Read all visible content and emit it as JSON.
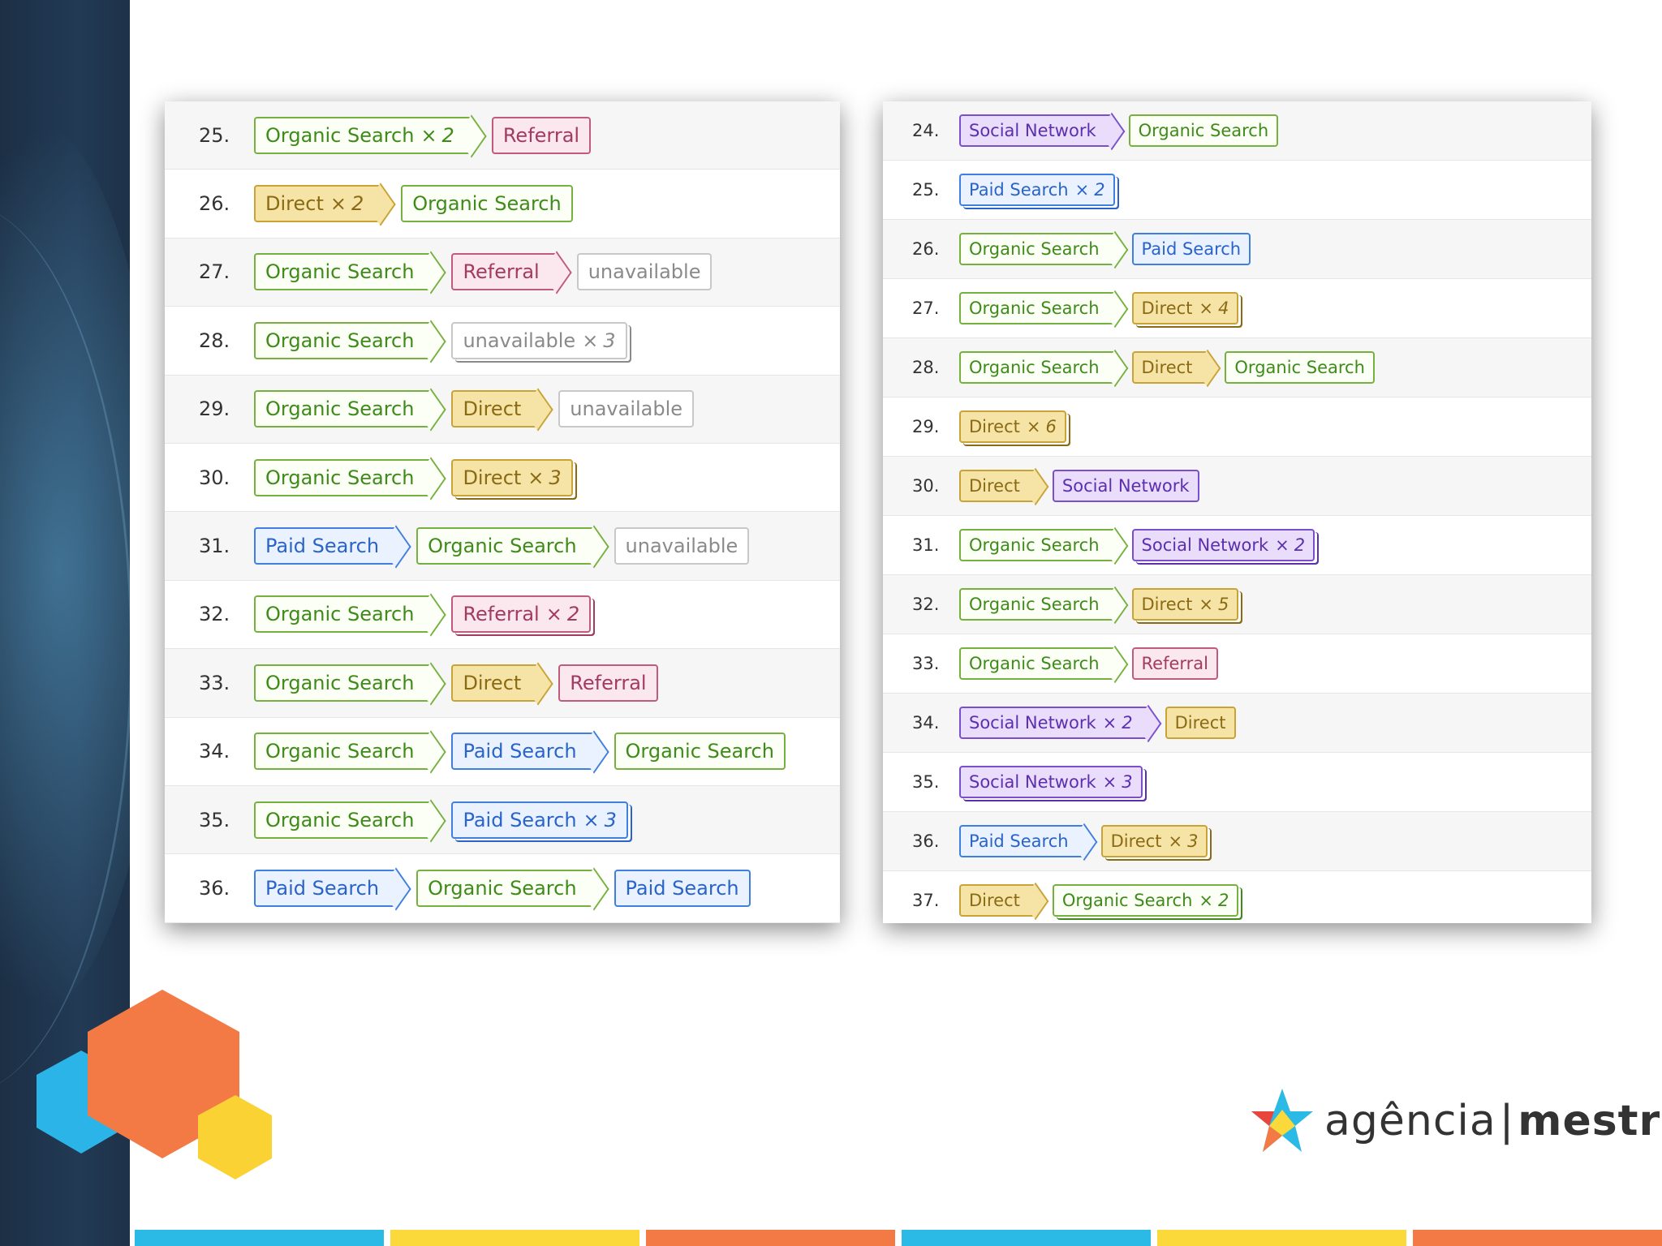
{
  "left_table": {
    "rows": [
      {
        "num": "25.",
        "chips": [
          {
            "label": "Organic Search",
            "type": "organic",
            "count": "2",
            "arrow": true
          },
          {
            "label": "Referral",
            "type": "referral",
            "arrow": false
          }
        ]
      },
      {
        "num": "26.",
        "chips": [
          {
            "label": "Direct",
            "type": "direct",
            "count": "2",
            "arrow": true
          },
          {
            "label": "Organic Search",
            "type": "organic",
            "arrow": false
          }
        ]
      },
      {
        "num": "27.",
        "chips": [
          {
            "label": "Organic Search",
            "type": "organic",
            "arrow": true
          },
          {
            "label": "Referral",
            "type": "referral",
            "arrow": true
          },
          {
            "label": "unavailable",
            "type": "unavailable",
            "arrow": false
          }
        ]
      },
      {
        "num": "28.",
        "chips": [
          {
            "label": "Organic Search",
            "type": "organic",
            "arrow": true
          },
          {
            "label": "unavailable",
            "type": "unavailable",
            "count": "3",
            "arrow": false
          }
        ]
      },
      {
        "num": "29.",
        "chips": [
          {
            "label": "Organic Search",
            "type": "organic",
            "arrow": true
          },
          {
            "label": "Direct",
            "type": "direct",
            "arrow": true
          },
          {
            "label": "unavailable",
            "type": "unavailable",
            "arrow": false
          }
        ]
      },
      {
        "num": "30.",
        "chips": [
          {
            "label": "Organic Search",
            "type": "organic",
            "arrow": true
          },
          {
            "label": "Direct",
            "type": "direct",
            "count": "3",
            "arrow": false
          }
        ]
      },
      {
        "num": "31.",
        "chips": [
          {
            "label": "Paid Search",
            "type": "paid",
            "arrow": true
          },
          {
            "label": "Organic Search",
            "type": "organic",
            "arrow": true
          },
          {
            "label": "unavailable",
            "type": "unavailable",
            "arrow": false
          }
        ]
      },
      {
        "num": "32.",
        "chips": [
          {
            "label": "Organic Search",
            "type": "organic",
            "arrow": true
          },
          {
            "label": "Referral",
            "type": "referral",
            "count": "2",
            "arrow": false
          }
        ]
      },
      {
        "num": "33.",
        "chips": [
          {
            "label": "Organic Search",
            "type": "organic",
            "arrow": true
          },
          {
            "label": "Direct",
            "type": "direct",
            "arrow": true
          },
          {
            "label": "Referral",
            "type": "referral",
            "arrow": false
          }
        ]
      },
      {
        "num": "34.",
        "chips": [
          {
            "label": "Organic Search",
            "type": "organic",
            "arrow": true
          },
          {
            "label": "Paid Search",
            "type": "paid",
            "arrow": true
          },
          {
            "label": "Organic Search",
            "type": "organic",
            "arrow": false
          }
        ]
      },
      {
        "num": "35.",
        "chips": [
          {
            "label": "Organic Search",
            "type": "organic",
            "arrow": true
          },
          {
            "label": "Paid Search",
            "type": "paid",
            "count": "3",
            "arrow": false
          }
        ]
      },
      {
        "num": "36.",
        "chips": [
          {
            "label": "Paid Search",
            "type": "paid",
            "arrow": true
          },
          {
            "label": "Organic Search",
            "type": "organic",
            "arrow": true
          },
          {
            "label": "Paid Search",
            "type": "paid",
            "arrow": false
          }
        ]
      }
    ]
  },
  "right_table": {
    "rows": [
      {
        "num": "24.",
        "chips": [
          {
            "label": "Social Network",
            "type": "social",
            "arrow": true
          },
          {
            "label": "Organic Search",
            "type": "organic",
            "arrow": false
          }
        ]
      },
      {
        "num": "25.",
        "chips": [
          {
            "label": "Paid Search",
            "type": "paid",
            "count": "2",
            "arrow": false
          }
        ]
      },
      {
        "num": "26.",
        "chips": [
          {
            "label": "Organic Search",
            "type": "organic",
            "arrow": true
          },
          {
            "label": "Paid Search",
            "type": "paid",
            "arrow": false
          }
        ]
      },
      {
        "num": "27.",
        "chips": [
          {
            "label": "Organic Search",
            "type": "organic",
            "arrow": true
          },
          {
            "label": "Direct",
            "type": "direct",
            "count": "4",
            "arrow": false
          }
        ]
      },
      {
        "num": "28.",
        "chips": [
          {
            "label": "Organic Search",
            "type": "organic",
            "arrow": true
          },
          {
            "label": "Direct",
            "type": "direct",
            "arrow": true
          },
          {
            "label": "Organic Search",
            "type": "organic",
            "arrow": false
          }
        ]
      },
      {
        "num": "29.",
        "chips": [
          {
            "label": "Direct",
            "type": "direct",
            "count": "6",
            "arrow": false
          }
        ]
      },
      {
        "num": "30.",
        "chips": [
          {
            "label": "Direct",
            "type": "direct",
            "arrow": true
          },
          {
            "label": "Social Network",
            "type": "social",
            "arrow": false
          }
        ]
      },
      {
        "num": "31.",
        "chips": [
          {
            "label": "Organic Search",
            "type": "organic",
            "arrow": true
          },
          {
            "label": "Social Network",
            "type": "social",
            "count": "2",
            "arrow": false
          }
        ]
      },
      {
        "num": "32.",
        "chips": [
          {
            "label": "Organic Search",
            "type": "organic",
            "arrow": true
          },
          {
            "label": "Direct",
            "type": "direct",
            "count": "5",
            "arrow": false
          }
        ]
      },
      {
        "num": "33.",
        "chips": [
          {
            "label": "Organic Search",
            "type": "organic",
            "arrow": true
          },
          {
            "label": "Referral",
            "type": "referral",
            "arrow": false
          }
        ]
      },
      {
        "num": "34.",
        "chips": [
          {
            "label": "Social Network",
            "type": "social",
            "count": "2",
            "arrow": true
          },
          {
            "label": "Direct",
            "type": "direct",
            "arrow": false
          }
        ]
      },
      {
        "num": "35.",
        "chips": [
          {
            "label": "Social Network",
            "type": "social",
            "count": "3",
            "arrow": false
          }
        ]
      },
      {
        "num": "36.",
        "chips": [
          {
            "label": "Paid Search",
            "type": "paid",
            "arrow": true
          },
          {
            "label": "Direct",
            "type": "direct",
            "count": "3",
            "arrow": false
          }
        ]
      },
      {
        "num": "37.",
        "chips": [
          {
            "label": "Direct",
            "type": "direct",
            "arrow": true
          },
          {
            "label": "Organic Search",
            "type": "organic",
            "count": "2",
            "arrow": false
          }
        ]
      }
    ]
  },
  "times_symbol": "×",
  "logo": {
    "word1": "agência",
    "separator": "|",
    "word2": "mestre",
    "icon": "star-burst-logo-icon"
  },
  "decor": {
    "hexagon_colors": [
      "#2ab4e8",
      "#f47a45",
      "#fbd234"
    ]
  },
  "footer_bar_colors": [
    "#2bb9e6",
    "#fcd93a",
    "#f47a45",
    "#2bb9e6",
    "#fcd93a",
    "#f47a45"
  ]
}
